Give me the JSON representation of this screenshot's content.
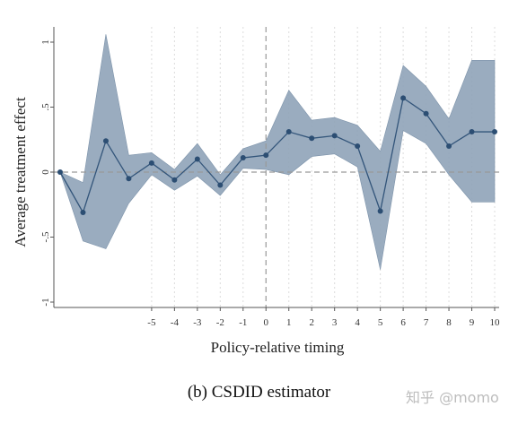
{
  "caption": "(b) CSDID estimator",
  "watermark": "知乎 @momo",
  "colors": {
    "band": "#8fa3b8",
    "line": "#33557a",
    "point": "#2c4e73",
    "ref": "#999999"
  },
  "chart_data": {
    "type": "line",
    "xlabel": "Policy-relative timing",
    "ylabel": "Average treatment effect",
    "xlim": [
      -9,
      10
    ],
    "ylim": [
      -1,
      1
    ],
    "xticks": [
      -5,
      -4,
      -3,
      -2,
      -1,
      0,
      1,
      2,
      3,
      4,
      5,
      6,
      7,
      8,
      9,
      10
    ],
    "xtick_labels": [
      "-5",
      "-4",
      "-3",
      "-2",
      "-1",
      "0",
      "1",
      "2",
      "3",
      "4",
      "5",
      "6",
      "7",
      "8",
      "9",
      "10"
    ],
    "yticks": [
      -1,
      -0.5,
      0,
      0.5,
      1
    ],
    "ytick_labels": [
      "-1",
      "-.5",
      "0",
      ".5",
      "1"
    ],
    "reference_lines": {
      "x": 0,
      "y": 0
    },
    "grid": "vertical dashed",
    "series": [
      {
        "x": [
          -9,
          -8,
          -7,
          -6,
          -5,
          -4,
          -3,
          -2,
          -1,
          0,
          1,
          2,
          3,
          4,
          5,
          6,
          7,
          8,
          9,
          10
        ],
        "values": [
          0,
          -0.31,
          0.24,
          -0.05,
          0.07,
          -0.06,
          0.1,
          -0.1,
          0.11,
          0.13,
          0.31,
          0.26,
          0.28,
          0.2,
          -0.3,
          0.57,
          0.45,
          0.2,
          0.31,
          0.31
        ],
        "ci_lower": [
          0,
          -0.53,
          -0.59,
          -0.24,
          -0.02,
          -0.14,
          -0.03,
          -0.18,
          0.03,
          0.02,
          -0.02,
          0.12,
          0.14,
          0.04,
          -0.75,
          0.32,
          0.22,
          -0.02,
          -0.23,
          -0.23
        ],
        "ci_upper": [
          0,
          -0.08,
          1.06,
          0.13,
          0.15,
          0.02,
          0.22,
          -0.02,
          0.18,
          0.24,
          0.63,
          0.4,
          0.42,
          0.36,
          0.16,
          0.82,
          0.66,
          0.41,
          0.86,
          0.86
        ]
      }
    ]
  }
}
